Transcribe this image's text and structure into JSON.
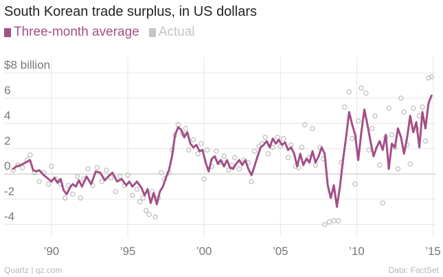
{
  "header": {
    "title": "South Korean trade surplus, in US dollars"
  },
  "footer": {
    "source_left": "Quartz | qz.com",
    "source_right": "Data: FactSet"
  },
  "colors": {
    "average": "#a24f86",
    "actual": "#c4c4c4",
    "grid": "#e6e6e6",
    "zero": "#bdbdbd",
    "tick_text": "#777777"
  },
  "chart_data": {
    "type": "line",
    "title": "South Korean trade surplus, in US dollars",
    "ylabel": "$8 billion",
    "xlabel": "",
    "ylim": [
      -5,
      8.6
    ],
    "xlim": [
      1986.9,
      2015.2
    ],
    "y_ticks": [
      {
        "value": 8,
        "label": "$8 billion"
      },
      {
        "value": 6,
        "label": "6"
      },
      {
        "value": 4,
        "label": "4"
      },
      {
        "value": 2,
        "label": "2"
      },
      {
        "value": 0,
        "label": "0"
      },
      {
        "value": -2,
        "label": "-2"
      },
      {
        "value": -4,
        "label": "-4"
      }
    ],
    "x_ticks": [
      {
        "value": 1990,
        "label": "’90"
      },
      {
        "value": 1995,
        "label": "’95"
      },
      {
        "value": 2000,
        "label": "’00"
      },
      {
        "value": 2005,
        "label": "’05"
      },
      {
        "value": 2010,
        "label": "’10"
      },
      {
        "value": 2015,
        "label": "’15"
      }
    ],
    "legend_position": "top-left",
    "grid": true,
    "series": [
      {
        "name": "Three-month average",
        "style": "line",
        "points": [
          [
            1987.5,
            0.4
          ],
          [
            1987.7,
            0.6
          ],
          [
            1988.0,
            0.7
          ],
          [
            1988.3,
            0.9
          ],
          [
            1988.6,
            1.1
          ],
          [
            1988.8,
            0.3
          ],
          [
            1989.0,
            0.2
          ],
          [
            1989.2,
            0.3
          ],
          [
            1989.5,
            -0.1
          ],
          [
            1989.8,
            -0.4
          ],
          [
            1990.0,
            -0.6
          ],
          [
            1990.2,
            -0.3
          ],
          [
            1990.4,
            -0.7
          ],
          [
            1990.6,
            -0.4
          ],
          [
            1990.8,
            -1.3
          ],
          [
            1991.0,
            -1.6
          ],
          [
            1991.2,
            -1.1
          ],
          [
            1991.4,
            -0.8
          ],
          [
            1991.6,
            -1.0
          ],
          [
            1991.8,
            -0.5
          ],
          [
            1992.0,
            -1.0
          ],
          [
            1992.3,
            -0.2
          ],
          [
            1992.6,
            -0.8
          ],
          [
            1992.9,
            0.2
          ],
          [
            1993.2,
            0.1
          ],
          [
            1993.5,
            -0.5
          ],
          [
            1993.8,
            -0.1
          ],
          [
            1994.0,
            0.1
          ],
          [
            1994.3,
            -0.6
          ],
          [
            1994.6,
            -0.4
          ],
          [
            1994.9,
            -0.9
          ],
          [
            1995.1,
            -0.6
          ],
          [
            1995.3,
            -1.0
          ],
          [
            1995.6,
            -0.6
          ],
          [
            1995.9,
            -1.1
          ],
          [
            1996.1,
            -1.7
          ],
          [
            1996.3,
            -1.2
          ],
          [
            1996.5,
            -2.3
          ],
          [
            1996.7,
            -1.5
          ],
          [
            1996.9,
            -2.4
          ],
          [
            1997.1,
            -1.4
          ],
          [
            1997.3,
            -1.0
          ],
          [
            1997.5,
            -0.3
          ],
          [
            1997.7,
            0.3
          ],
          [
            1997.9,
            1.4
          ],
          [
            1998.1,
            3.1
          ],
          [
            1998.3,
            3.7
          ],
          [
            1998.5,
            3.5
          ],
          [
            1998.7,
            2.9
          ],
          [
            1998.9,
            3.3
          ],
          [
            1999.1,
            2.4
          ],
          [
            1999.3,
            2.1
          ],
          [
            1999.5,
            2.3
          ],
          [
            1999.7,
            1.8
          ],
          [
            1999.9,
            1.9
          ],
          [
            2000.1,
            0.9
          ],
          [
            2000.3,
            0.2
          ],
          [
            2000.5,
            1.2
          ],
          [
            2000.7,
            1.4
          ],
          [
            2000.9,
            0.8
          ],
          [
            2001.1,
            1.1
          ],
          [
            2001.3,
            0.6
          ],
          [
            2001.5,
            1.1
          ],
          [
            2001.7,
            0.5
          ],
          [
            2001.9,
            0.4
          ],
          [
            2002.1,
            0.8
          ],
          [
            2002.3,
            1.1
          ],
          [
            2002.5,
            0.7
          ],
          [
            2002.7,
            1.1
          ],
          [
            2002.9,
            0.4
          ],
          [
            2003.1,
            -0.1
          ],
          [
            2003.3,
            0.6
          ],
          [
            2003.5,
            1.4
          ],
          [
            2003.7,
            2.1
          ],
          [
            2003.9,
            2.3
          ],
          [
            2004.1,
            2.6
          ],
          [
            2004.3,
            2.1
          ],
          [
            2004.5,
            2.8
          ],
          [
            2004.7,
            2.4
          ],
          [
            2004.9,
            2.7
          ],
          [
            2005.1,
            2.3
          ],
          [
            2005.3,
            2.5
          ],
          [
            2005.5,
            1.9
          ],
          [
            2005.7,
            2.1
          ],
          [
            2005.9,
            1.6
          ],
          [
            2006.1,
            0.6
          ],
          [
            2006.3,
            1.6
          ],
          [
            2006.5,
            0.7
          ],
          [
            2006.7,
            1.2
          ],
          [
            2006.9,
            0.9
          ],
          [
            2007.1,
            1.8
          ],
          [
            2007.3,
            0.9
          ],
          [
            2007.5,
            1.4
          ],
          [
            2007.7,
            2.1
          ],
          [
            2007.9,
            1.6
          ],
          [
            2008.1,
            -0.9
          ],
          [
            2008.3,
            -1.9
          ],
          [
            2008.5,
            -0.9
          ],
          [
            2008.7,
            -2.6
          ],
          [
            2008.9,
            -1.0
          ],
          [
            2009.1,
            1.1
          ],
          [
            2009.3,
            2.9
          ],
          [
            2009.5,
            4.9
          ],
          [
            2009.7,
            3.9
          ],
          [
            2009.9,
            3.1
          ],
          [
            2010.1,
            1.1
          ],
          [
            2010.3,
            3.3
          ],
          [
            2010.5,
            5.1
          ],
          [
            2010.7,
            3.9
          ],
          [
            2010.9,
            2.6
          ],
          [
            2011.1,
            1.4
          ],
          [
            2011.3,
            2.1
          ],
          [
            2011.5,
            2.6
          ],
          [
            2011.7,
            1.9
          ],
          [
            2011.9,
            3.1
          ],
          [
            2012.1,
            0.4
          ],
          [
            2012.3,
            2.4
          ],
          [
            2012.5,
            2.1
          ],
          [
            2012.7,
            3.6
          ],
          [
            2012.9,
            2.9
          ],
          [
            2013.1,
            1.6
          ],
          [
            2013.3,
            2.9
          ],
          [
            2013.5,
            4.6
          ],
          [
            2013.7,
            3.3
          ],
          [
            2013.9,
            4.1
          ],
          [
            2014.1,
            2.1
          ],
          [
            2014.3,
            4.9
          ],
          [
            2014.5,
            3.6
          ],
          [
            2014.7,
            5.6
          ],
          [
            2014.9,
            6.2
          ]
        ]
      },
      {
        "name": "Actual",
        "style": "scatter",
        "points": [
          [
            1987.5,
            0.3
          ],
          [
            1987.8,
            0.7
          ],
          [
            1988.1,
            0.5
          ],
          [
            1988.4,
            1.1
          ],
          [
            1988.6,
            1.5
          ],
          [
            1988.9,
            0.1
          ],
          [
            1989.2,
            -0.6
          ],
          [
            1989.5,
            0.1
          ],
          [
            1989.8,
            -0.8
          ],
          [
            1990.0,
            0.6
          ],
          [
            1990.3,
            -0.4
          ],
          [
            1990.6,
            -0.8
          ],
          [
            1990.9,
            -1.9
          ],
          [
            1991.1,
            -0.9
          ],
          [
            1991.4,
            -1.6
          ],
          [
            1991.7,
            -0.2
          ],
          [
            1991.9,
            -1.9
          ],
          [
            1992.1,
            -0.4
          ],
          [
            1992.4,
            0.4
          ],
          [
            1992.7,
            -0.9
          ],
          [
            1993.0,
            0.5
          ],
          [
            1993.3,
            -0.6
          ],
          [
            1993.6,
            0.3
          ],
          [
            1993.9,
            -0.3
          ],
          [
            1994.2,
            -1.4
          ],
          [
            1994.5,
            -0.2
          ],
          [
            1994.8,
            -0.9
          ],
          [
            1995.0,
            -0.1
          ],
          [
            1995.3,
            -1.7
          ],
          [
            1995.6,
            -1.2
          ],
          [
            1995.8,
            -2.2
          ],
          [
            1996.0,
            -1.9
          ],
          [
            1996.2,
            -2.9
          ],
          [
            1996.4,
            -3.2
          ],
          [
            1996.6,
            -1.4
          ],
          [
            1996.8,
            -3.4
          ],
          [
            1997.0,
            -1.9
          ],
          [
            1997.2,
            0.1
          ],
          [
            1997.4,
            -0.4
          ],
          [
            1997.7,
            0.1
          ],
          [
            1997.9,
            1.9
          ],
          [
            1998.1,
            3.1
          ],
          [
            1998.3,
            3.9
          ],
          [
            1998.6,
            3.2
          ],
          [
            1998.8,
            3.6
          ],
          [
            1999.0,
            1.9
          ],
          [
            1999.3,
            2.7
          ],
          [
            1999.6,
            1.6
          ],
          [
            1999.8,
            2.4
          ],
          [
            2000.0,
            -0.4
          ],
          [
            2000.2,
            1.9
          ],
          [
            2000.5,
            0.6
          ],
          [
            2000.8,
            1.8
          ],
          [
            2001.0,
            0.9
          ],
          [
            2001.3,
            1.4
          ],
          [
            2001.6,
            0.3
          ],
          [
            2001.8,
            0.7
          ],
          [
            2002.0,
            1.3
          ],
          [
            2002.3,
            0.4
          ],
          [
            2002.6,
            1.1
          ],
          [
            2002.9,
            0.9
          ],
          [
            2003.1,
            -0.6
          ],
          [
            2003.3,
            1.8
          ],
          [
            2003.6,
            2.2
          ],
          [
            2003.8,
            2.4
          ],
          [
            2004.0,
            2.9
          ],
          [
            2004.2,
            1.6
          ],
          [
            2004.5,
            2.1
          ],
          [
            2004.8,
            2.9
          ],
          [
            2005.0,
            2.2
          ],
          [
            2005.2,
            2.8
          ],
          [
            2005.5,
            1.3
          ],
          [
            2005.7,
            2.3
          ],
          [
            2006.0,
            0.6
          ],
          [
            2006.2,
            0.5
          ],
          [
            2006.4,
            2.1
          ],
          [
            2006.6,
            3.9
          ],
          [
            2006.9,
            1.3
          ],
          [
            2007.1,
            3.6
          ],
          [
            2007.3,
            0.7
          ],
          [
            2007.6,
            2.1
          ],
          [
            2007.8,
            1.2
          ],
          [
            2007.9,
            -4.0
          ],
          [
            2008.2,
            -3.8
          ],
          [
            2008.5,
            -3.7
          ],
          [
            2008.8,
            -3.7
          ],
          [
            2009.0,
            0.9
          ],
          [
            2009.2,
            5.3
          ],
          [
            2009.5,
            6.5
          ],
          [
            2009.7,
            2.8
          ],
          [
            2009.9,
            -0.8
          ],
          [
            2010.1,
            4.2
          ],
          [
            2010.3,
            6.8
          ],
          [
            2010.6,
            6.4
          ],
          [
            2010.8,
            1.9
          ],
          [
            2011.0,
            3.6
          ],
          [
            2011.2,
            4.6
          ],
          [
            2011.5,
            0.7
          ],
          [
            2011.7,
            -2.3
          ],
          [
            2011.9,
            2.9
          ],
          [
            2012.1,
            5.2
          ],
          [
            2012.3,
            3.1
          ],
          [
            2012.5,
            2.1
          ],
          [
            2012.7,
            0.4
          ],
          [
            2012.9,
            6.0
          ],
          [
            2013.1,
            4.9
          ],
          [
            2013.3,
            2.3
          ],
          [
            2013.5,
            0.8
          ],
          [
            2013.7,
            5.2
          ],
          [
            2013.9,
            3.6
          ],
          [
            2014.1,
            4.6
          ],
          [
            2014.3,
            5.3
          ],
          [
            2014.5,
            2.6
          ],
          [
            2014.7,
            7.6
          ],
          [
            2014.9,
            7.7
          ]
        ]
      }
    ]
  }
}
